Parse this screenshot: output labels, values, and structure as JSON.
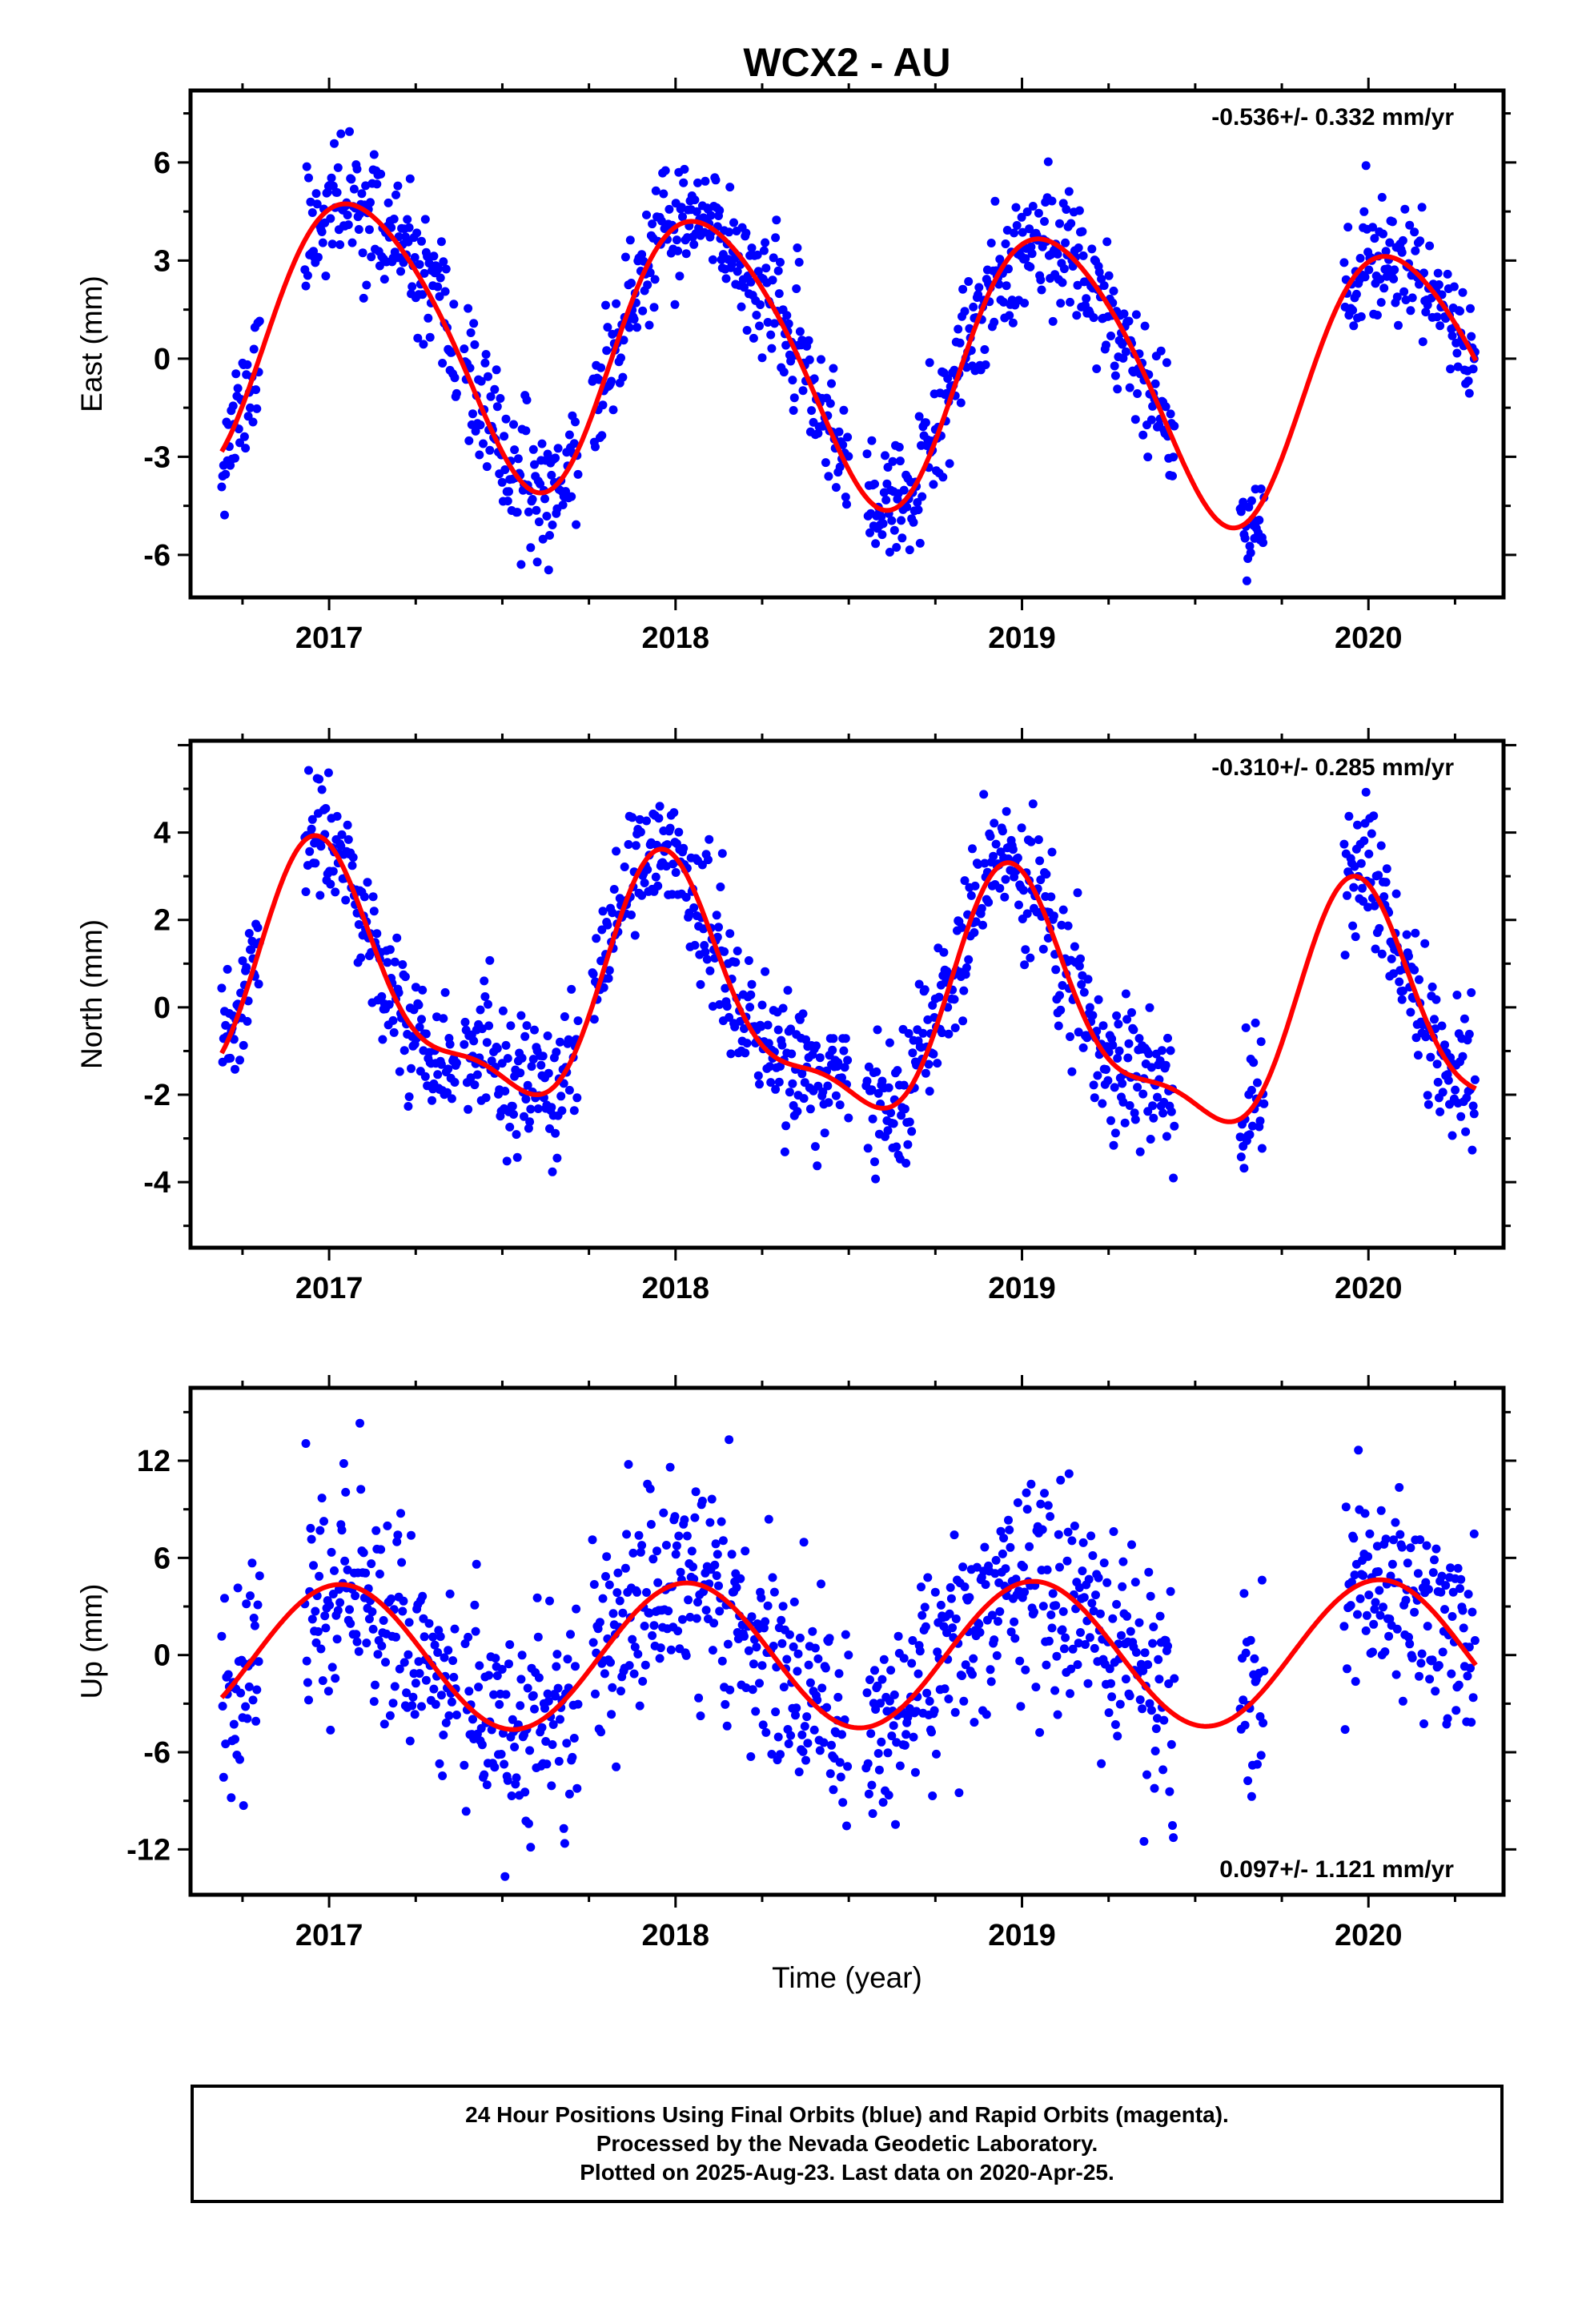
{
  "title": "WCX2 - AU",
  "xlabel": "Time (year)",
  "colors": {
    "points": "#0000ff",
    "fit": "#ff0000",
    "axes": "#000000"
  },
  "chart_data": [
    {
      "type": "scatter",
      "component": "East",
      "ylabel": "East (mm)",
      "rate_label": "-0.536+/- 0.332 mm/yr",
      "rate_position": "top-right",
      "xlim": [
        2016.6,
        2020.39
      ],
      "ylim": [
        -7.3,
        8.2
      ],
      "xticks": [
        2017,
        2018,
        2019,
        2020
      ],
      "xtick_labels": [
        "2017",
        "2018",
        "2019",
        "2020"
      ],
      "yticks": [
        -6,
        -3,
        0,
        3,
        6
      ],
      "ytick_labels": [
        "-6",
        "-3",
        "0",
        "3",
        "6"
      ],
      "grid": false,
      "data_ranges": [
        [
          2016.69,
          2016.8
        ],
        [
          2016.93,
          2017.37
        ],
        [
          2017.39,
          2017.72
        ],
        [
          2017.76,
          2018.5
        ],
        [
          2018.55,
          2019.44
        ],
        [
          2019.63,
          2019.7
        ],
        [
          2019.93,
          2020.31
        ]
      ],
      "model": {
        "annual_amp": 4.2,
        "annual_phase": -0.55,
        "semi_amp": 0.5,
        "semi_phase": 1.2,
        "trend": -0.536,
        "ref": 2018.5
      },
      "scatter_std": 0.95,
      "seed": 11
    },
    {
      "type": "scatter",
      "component": "North",
      "ylabel": "North (mm)",
      "rate_label": "-0.310+/- 0.285 mm/yr",
      "rate_position": "top-right",
      "xlim": [
        2016.6,
        2020.39
      ],
      "ylim": [
        -5.5,
        6.1
      ],
      "xticks": [
        2017,
        2018,
        2019,
        2020
      ],
      "xtick_labels": [
        "2017",
        "2018",
        "2019",
        "2020"
      ],
      "yticks": [
        -4,
        -2,
        0,
        2,
        4
      ],
      "ytick_labels": [
        "-4",
        "-2",
        "0",
        "2",
        "4"
      ],
      "grid": false,
      "data_ranges": [
        [
          2016.69,
          2016.8
        ],
        [
          2016.93,
          2017.37
        ],
        [
          2017.39,
          2017.72
        ],
        [
          2017.76,
          2018.5
        ],
        [
          2018.55,
          2019.44
        ],
        [
          2019.63,
          2019.7
        ],
        [
          2019.93,
          2020.31
        ]
      ],
      "model": {
        "annual_amp": 2.6,
        "annual_phase": 0.1,
        "semi_amp": 0.9,
        "semi_phase": 0.7,
        "trend": -0.31,
        "ref": 2018.5
      },
      "scatter_std": 0.75,
      "seed": 23
    },
    {
      "type": "scatter",
      "component": "Up",
      "ylabel": "Up (mm)",
      "rate_label": "0.097+/- 1.121 mm/yr",
      "rate_position": "bottom-right",
      "xlim": [
        2016.6,
        2020.39
      ],
      "ylim": [
        -14.8,
        16.5
      ],
      "xticks": [
        2017,
        2018,
        2019,
        2020
      ],
      "xtick_labels": [
        "2017",
        "2018",
        "2019",
        "2020"
      ],
      "yticks": [
        -12,
        -6,
        0,
        6,
        12
      ],
      "ytick_labels": [
        "-12",
        "-6",
        "0",
        "6",
        "12"
      ],
      "grid": false,
      "data_ranges": [
        [
          2016.69,
          2016.8
        ],
        [
          2016.93,
          2017.37
        ],
        [
          2017.39,
          2017.72
        ],
        [
          2017.76,
          2018.5
        ],
        [
          2018.55,
          2019.44
        ],
        [
          2019.63,
          2019.7
        ],
        [
          2019.93,
          2020.31
        ]
      ],
      "model": {
        "annual_amp": 4.5,
        "annual_phase": -0.2,
        "semi_amp": 0,
        "semi_phase": 0,
        "trend": 0.097,
        "ref": 2018.5
      },
      "scatter_std": 3.3,
      "seed": 37
    }
  ],
  "footer": {
    "line1": "24 Hour Positions Using Final Orbits (blue) and Rapid Orbits (magenta).",
    "line2": "Processed by the Nevada Geodetic Laboratory.",
    "line3": "Plotted on 2025-Aug-23. Last data on 2020-Apr-25."
  }
}
